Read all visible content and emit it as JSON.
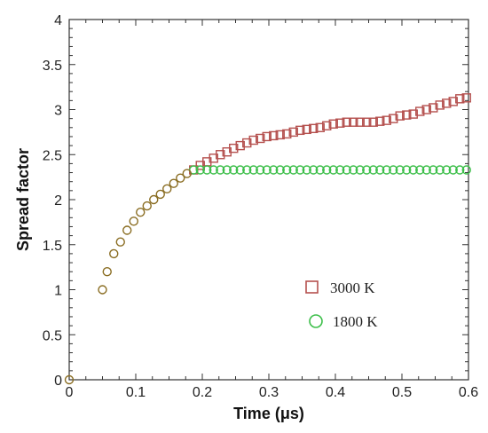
{
  "chart_data": {
    "type": "scatter",
    "xlabel": "Time (μs)",
    "ylabel": "Spread factor",
    "xlim": [
      0,
      0.6
    ],
    "ylim": [
      0,
      4
    ],
    "xticks": [
      "0",
      "0.1",
      "0.2",
      "0.3",
      "0.4",
      "0.5",
      "0.6"
    ],
    "yticks": [
      "0",
      "0.5",
      "1",
      "1.5",
      "2",
      "2.5",
      "3",
      "3.5",
      "4"
    ],
    "grid": false,
    "legend_position": "bottom-right",
    "series": [
      {
        "name": "3000 K",
        "marker": "square",
        "color": "#b5514f",
        "x": [
          0.187,
          0.197,
          0.207,
          0.217,
          0.227,
          0.237,
          0.247,
          0.257,
          0.267,
          0.277,
          0.287,
          0.297,
          0.307,
          0.317,
          0.327,
          0.337,
          0.347,
          0.357,
          0.367,
          0.377,
          0.387,
          0.397,
          0.407,
          0.417,
          0.427,
          0.437,
          0.447,
          0.457,
          0.467,
          0.477,
          0.487,
          0.497,
          0.507,
          0.517,
          0.527,
          0.537,
          0.547,
          0.557,
          0.567,
          0.577,
          0.587,
          0.597
        ],
        "y": [
          2.33,
          2.38,
          2.42,
          2.46,
          2.5,
          2.53,
          2.57,
          2.6,
          2.63,
          2.66,
          2.68,
          2.7,
          2.71,
          2.72,
          2.73,
          2.75,
          2.77,
          2.78,
          2.79,
          2.8,
          2.82,
          2.84,
          2.85,
          2.86,
          2.86,
          2.86,
          2.86,
          2.86,
          2.87,
          2.88,
          2.9,
          2.93,
          2.94,
          2.95,
          2.98,
          3.0,
          3.02,
          3.05,
          3.07,
          3.09,
          3.12,
          3.13
        ]
      },
      {
        "name": "1800 K",
        "marker": "circle",
        "color": "#3dbf4a",
        "x": [
          0.187,
          0.197,
          0.207,
          0.217,
          0.227,
          0.237,
          0.247,
          0.257,
          0.267,
          0.277,
          0.287,
          0.297,
          0.307,
          0.317,
          0.327,
          0.337,
          0.347,
          0.357,
          0.367,
          0.377,
          0.387,
          0.397,
          0.407,
          0.417,
          0.427,
          0.437,
          0.447,
          0.457,
          0.467,
          0.477,
          0.487,
          0.497,
          0.507,
          0.517,
          0.527,
          0.537,
          0.547,
          0.557,
          0.567,
          0.577,
          0.587,
          0.597
        ],
        "y": [
          2.33,
          2.33,
          2.33,
          2.33,
          2.33,
          2.33,
          2.33,
          2.33,
          2.33,
          2.33,
          2.33,
          2.33,
          2.33,
          2.33,
          2.33,
          2.33,
          2.33,
          2.33,
          2.33,
          2.33,
          2.33,
          2.33,
          2.33,
          2.33,
          2.33,
          2.33,
          2.33,
          2.33,
          2.33,
          2.33,
          2.33,
          2.33,
          2.33,
          2.33,
          2.33,
          2.33,
          2.33,
          2.33,
          2.33,
          2.33,
          2.33,
          2.33
        ]
      },
      {
        "name": "",
        "marker": "circle",
        "color": "#8a6d22",
        "x": [
          0.0,
          0.05,
          0.057,
          0.067,
          0.077,
          0.087,
          0.097,
          0.107,
          0.117,
          0.127,
          0.137,
          0.147,
          0.157,
          0.167,
          0.177
        ],
        "y": [
          0.0,
          1.0,
          1.2,
          1.4,
          1.53,
          1.66,
          1.76,
          1.86,
          1.93,
          2.0,
          2.06,
          2.12,
          2.18,
          2.24,
          2.29
        ]
      }
    ]
  }
}
